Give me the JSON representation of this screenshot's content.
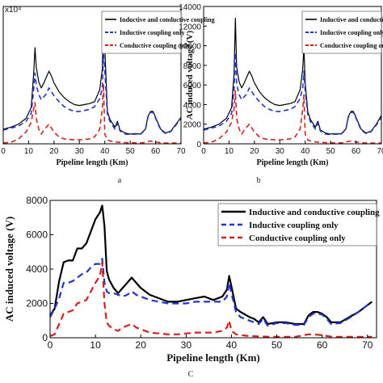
{
  "chart_data": [
    {
      "panel": "a",
      "type": "line",
      "caption": "a",
      "xlabel": "Pipeline length (Km)",
      "ylabel": "",
      "exponent_label": "x10⁴",
      "xlim": [
        0,
        70
      ],
      "ylim": [
        0,
        14000
      ],
      "xticks": [
        0,
        10,
        20,
        30,
        40,
        50,
        60,
        70
      ],
      "yticks": [],
      "grid": false,
      "legend": "top-right",
      "series": [
        {
          "name": "Inductive and conductive coupling",
          "color": "#000000",
          "dash": "",
          "width": 1.2,
          "x": [
            0,
            3,
            6,
            9,
            11,
            12,
            12.5,
            13,
            14,
            15,
            16,
            17,
            18,
            19,
            20,
            22,
            24,
            26,
            28,
            30,
            32,
            34,
            36,
            38,
            39,
            39.5,
            40,
            41,
            42,
            44,
            45,
            46,
            48,
            50,
            52,
            54,
            56,
            57,
            58,
            59,
            60,
            62,
            64,
            66,
            68,
            70
          ],
          "y": [
            1500,
            1700,
            2000,
            2600,
            3700,
            7200,
            9800,
            7800,
            6300,
            5700,
            6200,
            6800,
            7400,
            6900,
            6200,
            5300,
            4700,
            4300,
            4000,
            3900,
            4000,
            4100,
            4300,
            5500,
            7600,
            12900,
            9800,
            3300,
            2500,
            1700,
            2300,
            1400,
            1100,
            1000,
            1050,
            1000,
            1500,
            2800,
            3300,
            3300,
            2700,
            1500,
            1100,
            1300,
            2000,
            2700
          ]
        },
        {
          "name": "Inductive coupling only",
          "color": "#1f35d9",
          "dash": "6,4",
          "width": 1.6,
          "x": [
            0,
            3,
            6,
            9,
            11,
            12,
            12.5,
            13,
            14,
            15,
            16,
            17,
            18,
            19,
            20,
            22,
            24,
            26,
            28,
            30,
            32,
            34,
            36,
            38,
            39,
            39.5,
            40,
            41,
            42,
            44,
            45,
            46,
            48,
            50,
            52,
            54,
            56,
            57,
            58,
            59,
            60,
            62,
            64,
            66,
            68,
            70
          ],
          "y": [
            1400,
            1600,
            1800,
            2300,
            3100,
            5600,
            7200,
            6000,
            5000,
            4500,
            4800,
            5100,
            5700,
            5300,
            4900,
            4300,
            3800,
            3500,
            3300,
            3300,
            3400,
            3500,
            3800,
            4600,
            5700,
            9100,
            7500,
            3000,
            2300,
            1500,
            2100,
            1300,
            1000,
            950,
            1000,
            950,
            1450,
            2700,
            3200,
            3200,
            2600,
            1400,
            1050,
            1250,
            1900,
            2600
          ]
        },
        {
          "name": "Conductive coupling only",
          "color": "#e01b1b",
          "dash": "6,4",
          "width": 1.6,
          "x": [
            0,
            3,
            6,
            9,
            11,
            12,
            12.5,
            13,
            14,
            15,
            16,
            17,
            18,
            19,
            20,
            22,
            24,
            26,
            28,
            30,
            32,
            34,
            36,
            38,
            39,
            39.5,
            40,
            41,
            42,
            44,
            46,
            50,
            55,
            57,
            58,
            60,
            62,
            65,
            68,
            70
          ],
          "y": [
            100,
            150,
            500,
            1200,
            2200,
            3600,
            4200,
            2600,
            1500,
            1000,
            1400,
            1700,
            2000,
            1600,
            1200,
            700,
            500,
            450,
            400,
            400,
            450,
            500,
            700,
            1500,
            3500,
            6100,
            1000,
            400,
            300,
            200,
            150,
            100,
            100,
            250,
            280,
            200,
            100,
            80,
            80,
            80
          ]
        }
      ]
    },
    {
      "panel": "b",
      "type": "line",
      "caption": "b",
      "xlabel": "Pipeline length (Km)",
      "ylabel": "AC induced voltage (V)",
      "xlim": [
        0,
        70
      ],
      "ylim": [
        0,
        14000
      ],
      "xticks": [
        0,
        10,
        20,
        30,
        40,
        50,
        60,
        70
      ],
      "yticks": [
        0,
        2000,
        4000,
        6000,
        8000,
        10000,
        12000,
        14000
      ],
      "grid": false,
      "legend": "top-right",
      "series": [
        {
          "name": "Inductive and conductive coupling",
          "color": "#000000",
          "dash": "",
          "width": 1.2,
          "x": [
            0,
            3,
            6,
            9,
            11,
            12,
            12.5,
            13,
            14,
            15,
            16,
            17,
            18,
            19,
            20,
            22,
            24,
            26,
            28,
            30,
            32,
            34,
            36,
            38,
            39,
            39.5,
            40,
            41,
            42,
            44,
            45,
            46,
            48,
            50,
            52,
            54,
            56,
            57,
            58,
            59,
            60,
            62,
            64,
            66,
            68,
            70
          ],
          "y": [
            1500,
            1700,
            2000,
            2600,
            3700,
            7200,
            12800,
            7800,
            6300,
            5700,
            6200,
            6800,
            7400,
            6900,
            6200,
            5300,
            4700,
            4300,
            4000,
            3900,
            4000,
            4100,
            4300,
            5500,
            7600,
            9800,
            6200,
            3300,
            2500,
            1700,
            2300,
            1400,
            1100,
            1000,
            1050,
            1000,
            1500,
            2800,
            3300,
            3300,
            2700,
            1500,
            1100,
            1300,
            2000,
            2900
          ]
        },
        {
          "name": "Inductive coupling only",
          "color": "#1f35d9",
          "dash": "6,4",
          "width": 1.6,
          "x": [
            0,
            3,
            6,
            9,
            11,
            12,
            12.5,
            13,
            14,
            15,
            16,
            17,
            18,
            19,
            20,
            22,
            24,
            26,
            28,
            30,
            32,
            34,
            36,
            38,
            39,
            39.5,
            40,
            41,
            42,
            44,
            45,
            46,
            48,
            50,
            52,
            54,
            56,
            57,
            58,
            59,
            60,
            62,
            64,
            66,
            68,
            70
          ],
          "y": [
            1400,
            1600,
            1800,
            2300,
            3100,
            5600,
            9300,
            6000,
            5000,
            4500,
            4800,
            5100,
            5700,
            5300,
            4900,
            4300,
            3800,
            3500,
            3300,
            3300,
            3400,
            3500,
            3800,
            4600,
            5700,
            7400,
            5400,
            3000,
            2300,
            1500,
            2100,
            1300,
            1000,
            950,
            1000,
            950,
            1450,
            2700,
            3200,
            3200,
            2600,
            1400,
            1050,
            1250,
            1900,
            2700
          ]
        },
        {
          "name": "Conductive coupling only",
          "color": "#e01b1b",
          "dash": "6,4",
          "width": 1.6,
          "x": [
            0,
            3,
            6,
            9,
            11,
            12,
            12.5,
            13,
            14,
            15,
            16,
            17,
            18,
            19,
            20,
            22,
            24,
            26,
            28,
            30,
            32,
            34,
            36,
            38,
            39,
            39.5,
            40,
            41,
            42,
            44,
            46,
            50,
            55,
            57,
            58,
            60,
            62,
            65,
            68,
            70
          ],
          "y": [
            100,
            150,
            500,
            1200,
            2200,
            3600,
            5400,
            2600,
            1500,
            1000,
            1400,
            1700,
            2000,
            1600,
            1200,
            700,
            500,
            450,
            400,
            400,
            450,
            500,
            700,
            1500,
            3500,
            5000,
            1000,
            400,
            300,
            200,
            150,
            100,
            100,
            250,
            280,
            200,
            100,
            80,
            80,
            80
          ]
        }
      ]
    },
    {
      "panel": "c",
      "type": "line",
      "caption": "C",
      "xlabel": "Pipeline length (Km)",
      "ylabel": "AC induced voltage (V)",
      "xlim": [
        0,
        72
      ],
      "ylim": [
        0,
        8000
      ],
      "xticks": [
        0,
        10,
        20,
        30,
        40,
        50,
        60,
        70
      ],
      "yticks": [
        0,
        2000,
        4000,
        6000,
        8000
      ],
      "grid": false,
      "legend": "top-right",
      "series": [
        {
          "name": "Inductive and conductive coupling",
          "color": "#000000",
          "dash": "",
          "width": 2.2,
          "x": [
            0,
            1,
            2,
            3,
            4,
            5,
            6,
            7,
            8,
            9,
            10,
            11,
            11.5,
            12,
            12.5,
            13,
            14,
            15,
            16,
            17,
            18,
            19,
            20,
            22,
            24,
            26,
            28,
            30,
            32,
            34,
            36,
            38,
            39,
            39.5,
            40,
            41,
            42,
            44,
            45,
            46,
            47,
            48,
            50,
            52,
            54,
            56,
            57,
            58,
            59,
            60,
            61,
            62,
            64,
            66,
            68,
            70,
            71
          ],
          "y": [
            1300,
            1700,
            3300,
            4400,
            4500,
            4500,
            5200,
            5200,
            5500,
            6200,
            6900,
            7300,
            7700,
            6500,
            3900,
            3400,
            2900,
            2600,
            2900,
            3200,
            3500,
            3200,
            2900,
            2500,
            2300,
            2100,
            2100,
            2200,
            2300,
            2400,
            2200,
            2400,
            2800,
            3600,
            3000,
            1700,
            1500,
            1200,
            1100,
            900,
            1200,
            800,
            900,
            900,
            800,
            800,
            1300,
            1500,
            1500,
            1400,
            1200,
            900,
            900,
            1200,
            1500,
            1900,
            2100
          ]
        },
        {
          "name": "Inductive coupling only",
          "color": "#1f35d9",
          "dash": "8,5",
          "width": 2.2,
          "x": [
            0,
            1,
            2,
            3,
            4,
            5,
            6,
            7,
            8,
            9,
            10,
            11,
            11.5,
            12,
            12.5,
            13,
            14,
            15,
            16,
            17,
            18,
            19,
            20,
            22,
            24,
            26,
            28,
            30,
            32,
            34,
            36,
            38,
            39,
            39.5,
            40,
            41,
            42,
            44,
            45,
            46,
            47,
            48,
            50,
            52,
            54,
            56,
            57,
            58,
            59,
            60,
            61,
            62,
            64,
            66,
            68,
            70,
            71
          ],
          "y": [
            1200,
            1700,
            2300,
            3200,
            3200,
            3300,
            3500,
            3700,
            3800,
            4100,
            4300,
            4300,
            4600,
            3200,
            2700,
            2600,
            2600,
            2500,
            2400,
            2500,
            2700,
            2500,
            2400,
            2200,
            2100,
            2000,
            2000,
            2000,
            2100,
            2100,
            2100,
            2100,
            2400,
            3200,
            2600,
            1500,
            1200,
            1000,
            900,
            800,
            1100,
            700,
            850,
            850,
            750,
            750,
            1200,
            1400,
            1400,
            1350,
            1100,
            800,
            850,
            1150,
            1500,
            1900,
            2100
          ]
        },
        {
          "name": "Conductive coupling only",
          "color": "#e01b1b",
          "dash": "8,5",
          "width": 2.2,
          "x": [
            0,
            1,
            2,
            3,
            4,
            5,
            6,
            7,
            8,
            9,
            10,
            11,
            11.5,
            12,
            12.5,
            13,
            14,
            15,
            16,
            17,
            18,
            19,
            20,
            22,
            24,
            26,
            28,
            30,
            32,
            34,
            36,
            38,
            39,
            39.5,
            40,
            41,
            42,
            44,
            46,
            48,
            50,
            52,
            54,
            56,
            57,
            58,
            60,
            62,
            64,
            66,
            68,
            70,
            71
          ],
          "y": [
            100,
            200,
            800,
            1400,
            1500,
            1600,
            2000,
            2100,
            2200,
            2700,
            3200,
            3600,
            4400,
            2000,
            900,
            700,
            500,
            400,
            600,
            700,
            800,
            600,
            500,
            300,
            250,
            200,
            200,
            250,
            300,
            300,
            300,
            400,
            600,
            1000,
            400,
            200,
            150,
            100,
            80,
            60,
            50,
            50,
            50,
            150,
            200,
            200,
            150,
            60,
            50,
            50,
            50,
            50,
            50
          ]
        }
      ]
    }
  ]
}
